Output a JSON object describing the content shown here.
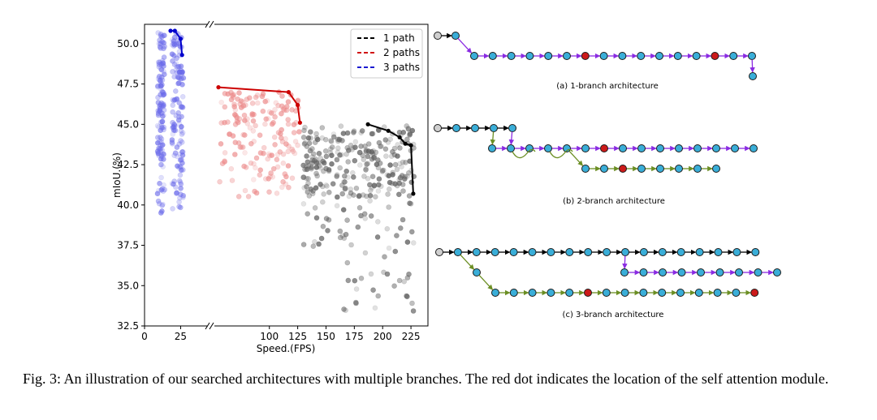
{
  "chart_data": {
    "type": "scatter",
    "ylabel": "mIoU.(%)",
    "xlabel": "Speed.(FPS)",
    "ylim": [
      32.5,
      51.2
    ],
    "yticks": [
      "32.5",
      "35.0",
      "37.5",
      "40.0",
      "42.5",
      "45.0",
      "47.5",
      "50.0"
    ],
    "ytick_values": [
      32.5,
      35.0,
      37.5,
      40.0,
      42.5,
      45.0,
      47.5,
      50.0
    ],
    "xticks_left": [
      "0",
      "25"
    ],
    "xtick_left_values": [
      0,
      25
    ],
    "xlim_left": [
      0,
      45
    ],
    "xticks_right": [
      "100",
      "125",
      "150",
      "175",
      "200",
      "225"
    ],
    "xtick_right_values": [
      100,
      125,
      150,
      175,
      200,
      225
    ],
    "xlim_right": [
      50,
      240
    ],
    "legend": [
      {
        "name": "1 path",
        "color": "#000000"
      },
      {
        "name": "2 paths",
        "color": "#d01010"
      },
      {
        "name": "3 paths",
        "color": "#1a1ad0"
      }
    ],
    "pareto_fronts": [
      {
        "name": "3 paths",
        "color": "#0000cc",
        "points": [
          [
            18,
            50.8
          ],
          [
            21,
            50.8
          ],
          [
            25,
            50.3
          ],
          [
            26,
            49.3
          ]
        ]
      },
      {
        "name": "2 paths",
        "color": "#cc0000",
        "points": [
          [
            55,
            47.3
          ],
          [
            117,
            47.0
          ],
          [
            125,
            46.2
          ],
          [
            127,
            45.1
          ]
        ]
      },
      {
        "name": "1 path",
        "color": "#000000",
        "points": [
          [
            187,
            45.0
          ],
          [
            205,
            44.6
          ],
          [
            215,
            44.2
          ],
          [
            220,
            43.8
          ],
          [
            225,
            43.7
          ],
          [
            227,
            40.7
          ]
        ]
      }
    ],
    "clusters": [
      {
        "name": "3 paths",
        "color": "#6b6bea",
        "x_range": [
          9,
          28
        ],
        "y_range": [
          39.5,
          50.7
        ],
        "count": 260
      },
      {
        "name": "2 paths",
        "color": "#ec8a8a",
        "x_range": [
          55,
          128
        ],
        "y_range": [
          40.5,
          47.0
        ],
        "count": 170
      },
      {
        "name": "1 path",
        "color": "#5e5e5e",
        "x_range": [
          130,
          228
        ],
        "y_range": [
          33.3,
          44.9
        ],
        "count": 320
      }
    ]
  },
  "architectures": [
    {
      "label": "(a) 1-branch architecture",
      "rows": [
        {
          "nodes": [
            "gray",
            "blue"
          ],
          "arrow_color": "#000000"
        },
        {
          "nodes": [
            "blue",
            "blue",
            "blue",
            "blue",
            "blue",
            "blue",
            "red",
            "blue",
            "blue",
            "blue",
            "blue",
            "blue",
            "blue",
            "red",
            "blue",
            "blue"
          ],
          "arrow_color": "#8a2be2"
        },
        {
          "nodes": [
            "blue"
          ],
          "arrow_color": "#8a2be2"
        }
      ]
    },
    {
      "label": "(b) 2-branch architecture",
      "rows": [
        {
          "nodes": [
            "gray",
            "blue",
            "blue",
            "blue",
            "blue"
          ],
          "arrow_color": "#000000"
        },
        {
          "nodes": [
            "blue",
            "blue",
            "blue",
            "blue",
            "blue",
            "blue",
            "red",
            "blue",
            "blue",
            "blue",
            "blue",
            "blue",
            "blue",
            "blue",
            "blue"
          ],
          "arrow_color": "#6b8e23"
        },
        {
          "nodes": [
            "blue",
            "blue",
            "red",
            "blue",
            "blue",
            "blue",
            "blue",
            "blue"
          ],
          "arrow_color": "#6b8e23"
        }
      ]
    },
    {
      "label": "(c) 3-branch architecture",
      "rows": [
        {
          "nodes": [
            "gray",
            "blue",
            "blue",
            "blue",
            "blue",
            "blue",
            "blue",
            "blue",
            "blue",
            "blue",
            "blue",
            "blue",
            "blue",
            "blue",
            "blue",
            "blue",
            "blue",
            "blue"
          ],
          "arrow_color": "#000000"
        },
        {
          "nodes": [
            "blue",
            "blue",
            "blue",
            "blue",
            "blue",
            "blue",
            "blue",
            "blue",
            "blue"
          ],
          "arrow_color": "#8a2be2"
        },
        {
          "nodes": [
            "blue",
            "blue",
            "blue",
            "blue",
            "blue",
            "red",
            "blue",
            "blue",
            "blue",
            "blue",
            "blue",
            "blue",
            "blue",
            "blue",
            "red"
          ],
          "arrow_color": "#6b8e23"
        }
      ]
    }
  ],
  "colors": {
    "node_blue": "#3aaed8",
    "node_red": "#cc1a1a",
    "node_gray": "#cfcfcf",
    "node_stroke": "#1a1a1a"
  },
  "caption": "Fig. 3: An illustration of our searched architectures with multiple branches. The red dot indicates the location of the self attention module."
}
